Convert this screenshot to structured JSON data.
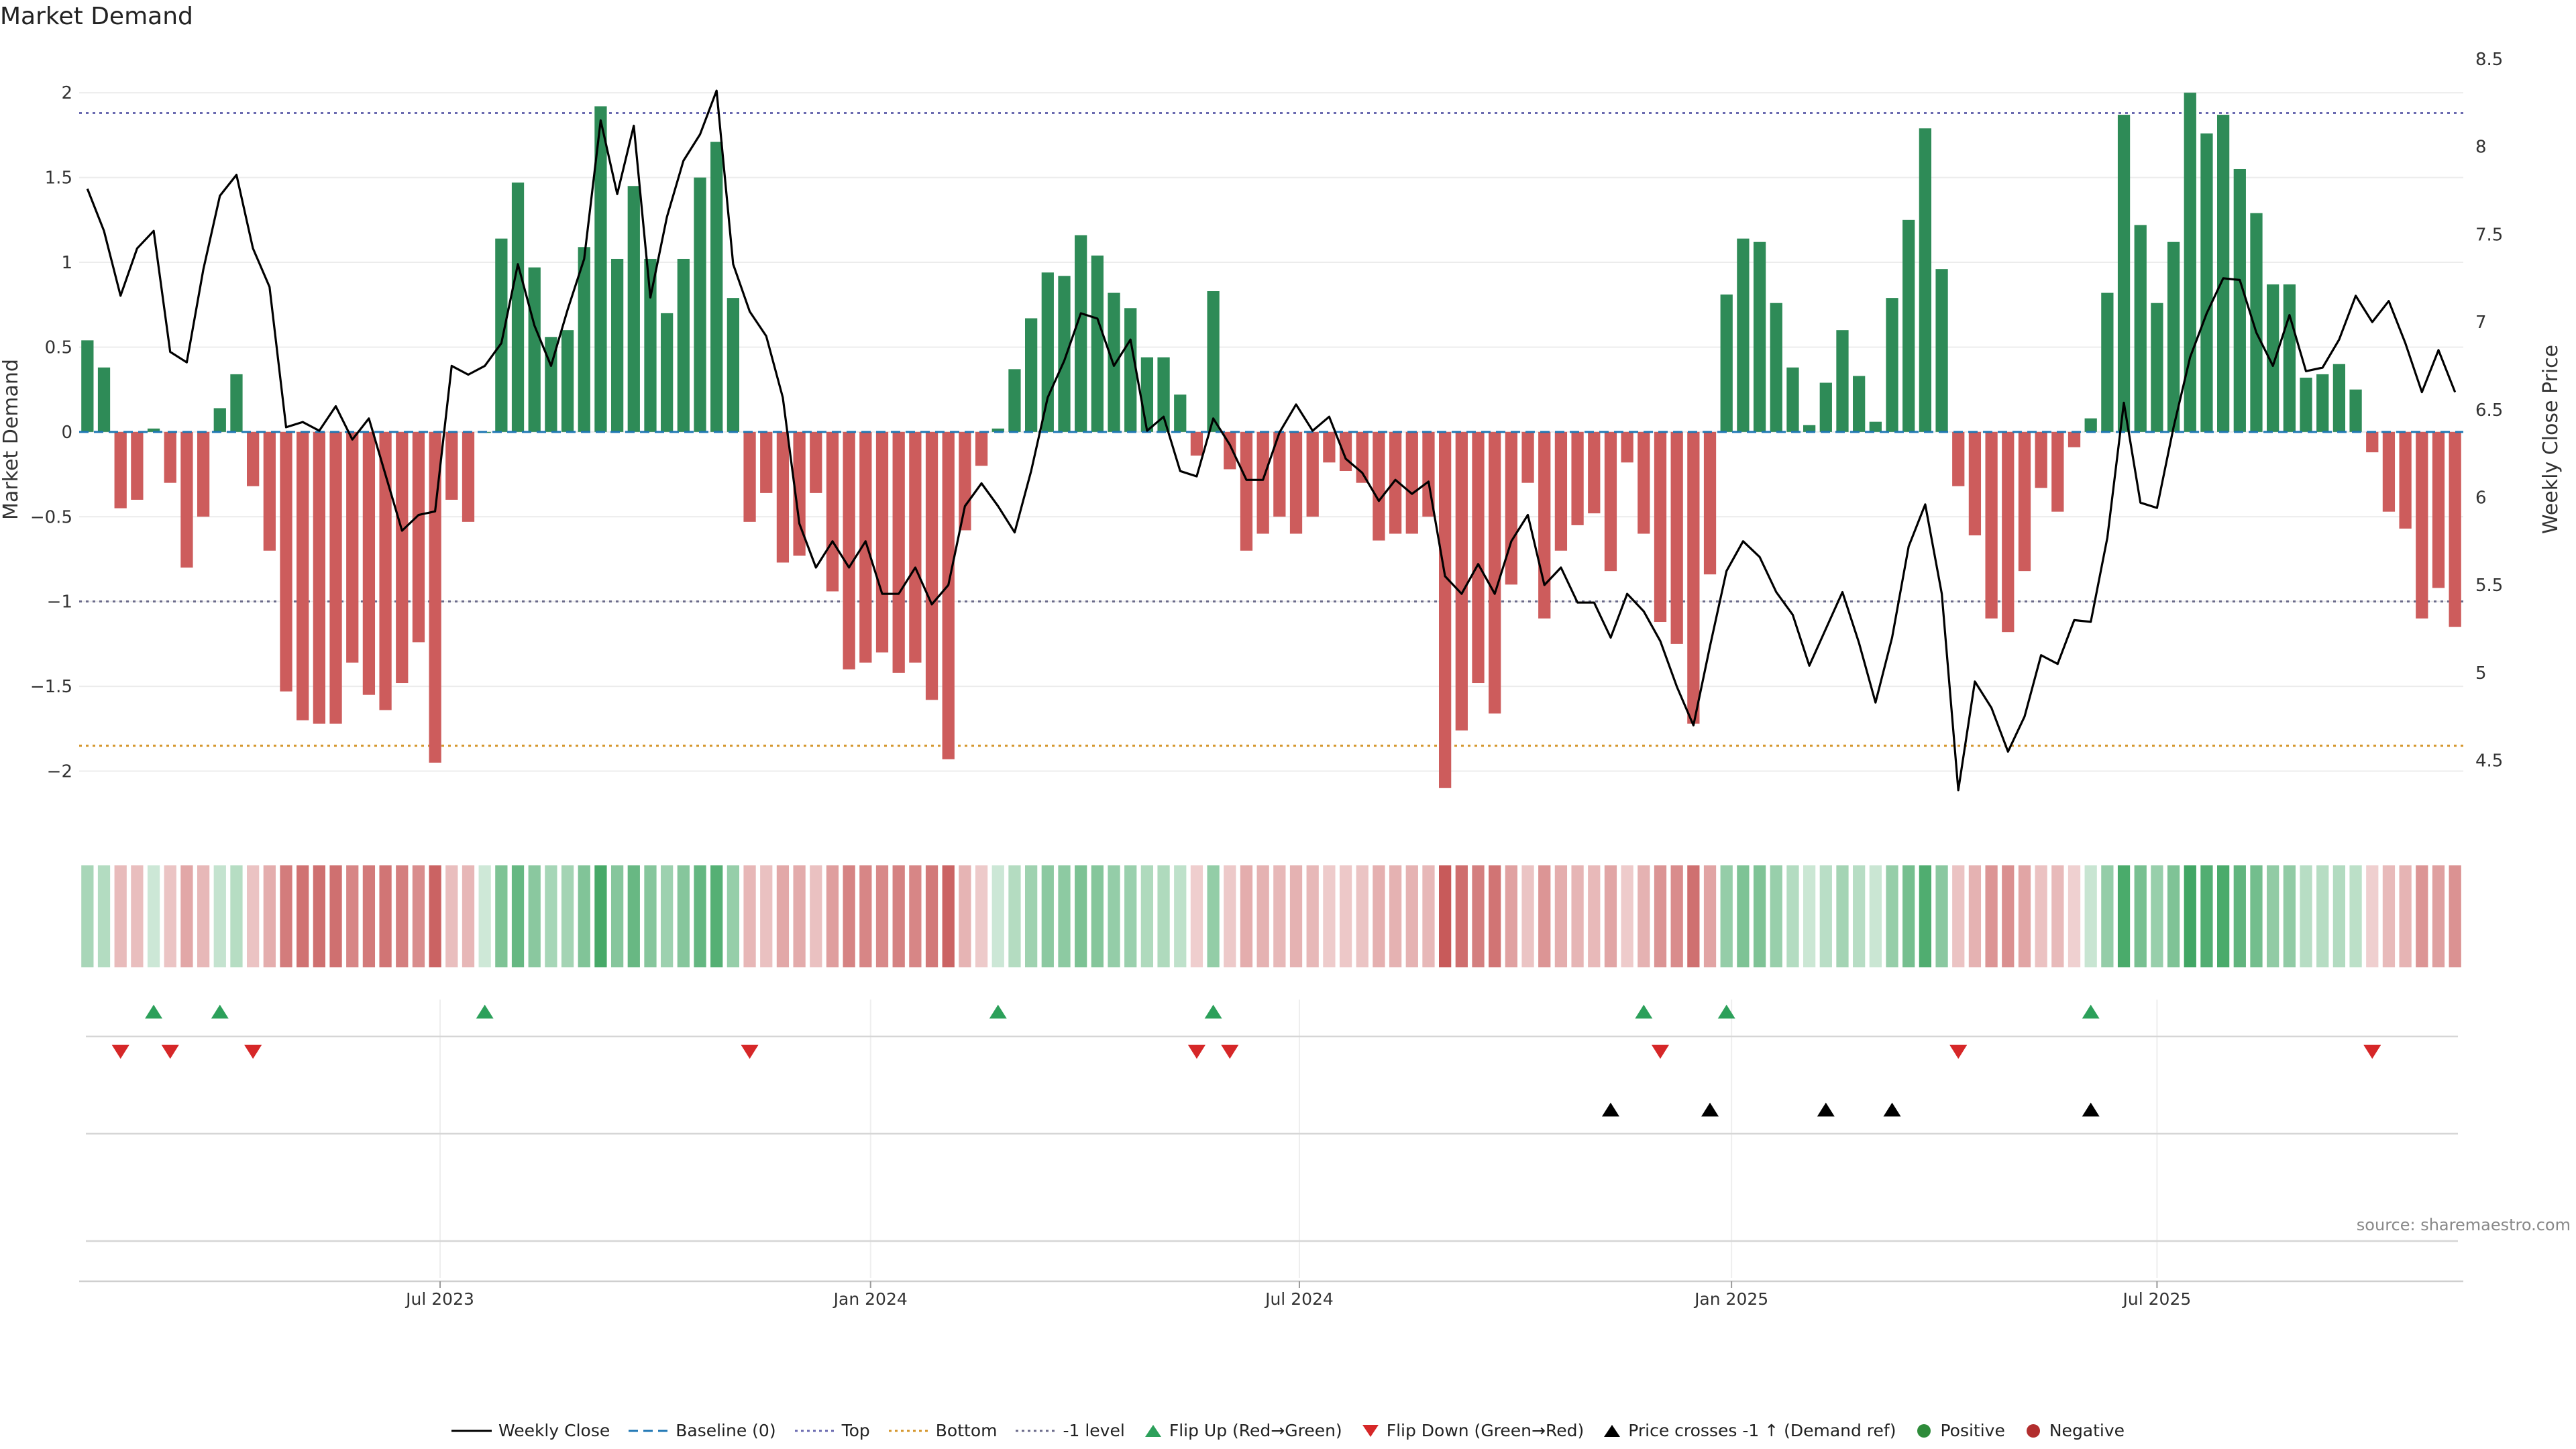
{
  "title": "Market Demand",
  "source": "source: sharemaestro.com",
  "colors": {
    "green": "#2e8b57",
    "red": "#cd5c5c",
    "line": "#000000",
    "top_line": "#6a6ab0",
    "bottom_line": "#d4952a",
    "minus1_line": "#6a6a8a",
    "baseline": "#1f77b4",
    "flip_up": "#2ca05a",
    "flip_down": "#d62728"
  },
  "legend": [
    {
      "label": "Weekly Close",
      "kind": "solid-line"
    },
    {
      "label": "Baseline (0)",
      "kind": "baseline-dash"
    },
    {
      "label": "Top",
      "kind": "top-dot"
    },
    {
      "label": "Bottom",
      "kind": "bottom-dot"
    },
    {
      "label": "-1 level",
      "kind": "minus1-dot"
    },
    {
      "label": "Flip Up (Red→Green)",
      "kind": "tri-up"
    },
    {
      "label": "Flip Down (Green→Red)",
      "kind": "tri-down"
    },
    {
      "label": "Price crosses -1 ↑ (Demand ref)",
      "kind": "tri-black"
    },
    {
      "label": "Positive",
      "kind": "dot-green"
    },
    {
      "label": "Negative",
      "kind": "dot-red"
    }
  ],
  "chart_data": {
    "type": "bar",
    "title": "Market Demand",
    "ylabel": "Market Demand",
    "y2label": "Weekly Close Price",
    "ylim": [
      -2.35,
      2.25
    ],
    "y2lim": [
      4.1,
      8.55
    ],
    "yticks": [
      2,
      1.5,
      1,
      0.5,
      0,
      -0.5,
      -1,
      -1.5,
      -2
    ],
    "ytick_labels": [
      "2",
      "1.5",
      "1",
      "0.5",
      "0",
      "−0.5",
      "−1",
      "−1.5",
      "−2"
    ],
    "y2ticks": [
      8.5,
      8,
      7.5,
      7,
      6.5,
      6,
      5.5,
      5,
      4.5
    ],
    "y2tick_labels": [
      "8.5",
      "8",
      "7.5",
      "7",
      "6.5",
      "6",
      "5.5",
      "5",
      "4.5"
    ],
    "xtick_labels": [
      "Jul 2023",
      "Jan 2024",
      "Jul 2024",
      "Jan 2025",
      "Jul 2025"
    ],
    "xtick_index": [
      21.3,
      47.3,
      73.2,
      99.3,
      125.0
    ],
    "levels": {
      "top": 1.88,
      "bottom": -1.85,
      "minus1": -1.0,
      "baseline": 0
    },
    "demand": [
      0.54,
      0.38,
      -0.45,
      -0.4,
      0.02,
      -0.3,
      -0.8,
      -0.5,
      0.14,
      0.34,
      -0.32,
      -0.7,
      -1.53,
      -1.7,
      -1.72,
      -1.72,
      -1.36,
      -1.55,
      -1.64,
      -1.48,
      -1.24,
      -1.95,
      -0.4,
      -0.53,
      0.0,
      1.14,
      1.47,
      0.97,
      0.56,
      0.6,
      1.09,
      1.92,
      1.02,
      1.45,
      1.02,
      0.7,
      1.02,
      1.5,
      1.71,
      0.79,
      -0.53,
      -0.36,
      -0.77,
      -0.73,
      -0.36,
      -0.94,
      -1.4,
      -1.36,
      -1.3,
      -1.42,
      -1.36,
      -1.58,
      -1.93,
      -0.58,
      -0.2,
      0.02,
      0.37,
      0.67,
      0.94,
      0.92,
      1.16,
      1.04,
      0.82,
      0.73,
      0.44,
      0.44,
      0.22,
      -0.14,
      0.83,
      -0.22,
      -0.7,
      -0.6,
      -0.5,
      -0.6,
      -0.5,
      -0.18,
      -0.23,
      -0.3,
      -0.64,
      -0.6,
      -0.6,
      -0.5,
      -2.1,
      -1.76,
      -1.48,
      -1.66,
      -0.9,
      -0.3,
      -1.1,
      -0.7,
      -0.55,
      -0.48,
      -0.82,
      -0.18,
      -0.6,
      -1.12,
      -1.25,
      -1.72,
      -0.84,
      0.81,
      1.14,
      1.12,
      0.76,
      0.38,
      0.04,
      0.29,
      0.6,
      0.33,
      0.06,
      0.79,
      1.25,
      1.79,
      0.96,
      -0.32,
      -0.61,
      -1.1,
      -1.18,
      -0.82,
      -0.33,
      -0.47,
      -0.09,
      0.08,
      0.82,
      1.87,
      1.22,
      0.76,
      1.12,
      2.0,
      1.76,
      1.87,
      1.55,
      1.29,
      0.87,
      0.87,
      0.32,
      0.34,
      0.4,
      0.25,
      -0.12,
      -0.47,
      -0.57,
      -1.1,
      -0.92,
      -1.15
    ],
    "close": [
      7.76,
      7.52,
      7.15,
      7.42,
      7.52,
      6.83,
      6.77,
      7.3,
      7.72,
      7.84,
      7.42,
      7.2,
      6.4,
      6.43,
      6.38,
      6.52,
      6.33,
      6.45,
      6.13,
      5.81,
      5.9,
      5.92,
      6.75,
      6.7,
      6.75,
      6.88,
      7.33,
      6.98,
      6.75,
      7.07,
      7.36,
      8.15,
      7.73,
      8.12,
      7.14,
      7.6,
      7.92,
      8.07,
      8.32,
      7.33,
      7.06,
      6.92,
      6.57,
      5.85,
      5.6,
      5.75,
      5.6,
      5.75,
      5.45,
      5.45,
      5.6,
      5.39,
      5.5,
      5.95,
      6.08,
      5.95,
      5.8,
      6.15,
      6.57,
      6.78,
      7.05,
      7.02,
      6.75,
      6.9,
      6.38,
      6.46,
      6.15,
      6.12,
      6.45,
      6.3,
      6.1,
      6.1,
      6.37,
      6.53,
      6.38,
      6.46,
      6.22,
      6.14,
      5.98,
      6.1,
      6.02,
      6.09,
      5.55,
      5.45,
      5.62,
      5.45,
      5.75,
      5.9,
      5.5,
      5.6,
      5.4,
      5.4,
      5.2,
      5.45,
      5.35,
      5.18,
      4.92,
      4.7,
      5.15,
      5.58,
      5.75,
      5.66,
      5.46,
      5.33,
      5.04,
      5.25,
      5.46,
      5.17,
      4.83,
      5.2,
      5.72,
      5.96,
      5.45,
      4.33,
      4.95,
      4.8,
      4.55,
      4.75,
      5.1,
      5.05,
      5.3,
      5.29,
      5.77,
      6.54,
      5.97,
      5.94,
      6.4,
      6.8,
      7.05,
      7.25,
      7.24,
      6.94,
      6.75,
      7.04,
      6.72,
      6.74,
      6.9,
      7.15,
      7.0,
      7.12,
      6.88,
      6.6,
      6.84,
      6.6
    ],
    "flip_up_index": [
      4,
      8,
      24,
      55,
      68,
      94,
      99,
      121
    ],
    "flip_down_index": [
      2,
      5,
      10,
      40,
      67,
      69,
      95,
      113,
      138
    ],
    "price_cross_index": [
      92,
      98,
      105,
      109,
      121
    ]
  }
}
